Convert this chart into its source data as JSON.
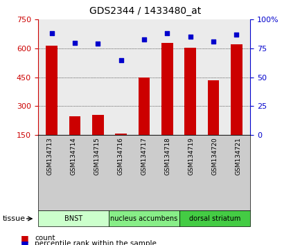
{
  "title": "GDS2344 / 1433480_at",
  "samples": [
    "GSM134713",
    "GSM134714",
    "GSM134715",
    "GSM134716",
    "GSM134717",
    "GSM134718",
    "GSM134719",
    "GSM134720",
    "GSM134721"
  ],
  "counts": [
    615,
    245,
    255,
    155,
    450,
    630,
    605,
    435,
    620
  ],
  "percentiles": [
    88,
    80,
    79,
    65,
    83,
    88,
    85,
    81,
    87
  ],
  "ylim_left": [
    150,
    750
  ],
  "ylim_right": [
    0,
    100
  ],
  "yticks_left": [
    150,
    300,
    450,
    600,
    750
  ],
  "yticks_right": [
    0,
    25,
    50,
    75,
    100
  ],
  "bar_color": "#cc0000",
  "dot_color": "#0000cc",
  "tissue_groups": [
    {
      "label": "BNST",
      "start": 0,
      "end": 2,
      "color": "#ccffcc"
    },
    {
      "label": "nucleus accumbens",
      "start": 3,
      "end": 5,
      "color": "#88ee88"
    },
    {
      "label": "dorsal striatum",
      "start": 6,
      "end": 8,
      "color": "#44cc44"
    }
  ],
  "tissue_label": "tissue",
  "legend_count_label": "count",
  "legend_pct_label": "percentile rank within the sample",
  "title_color": "#000000",
  "left_axis_color": "#cc0000",
  "right_axis_color": "#0000cc",
  "bg_plot": "#ebebeb",
  "bg_xticklabels": "#cccccc"
}
